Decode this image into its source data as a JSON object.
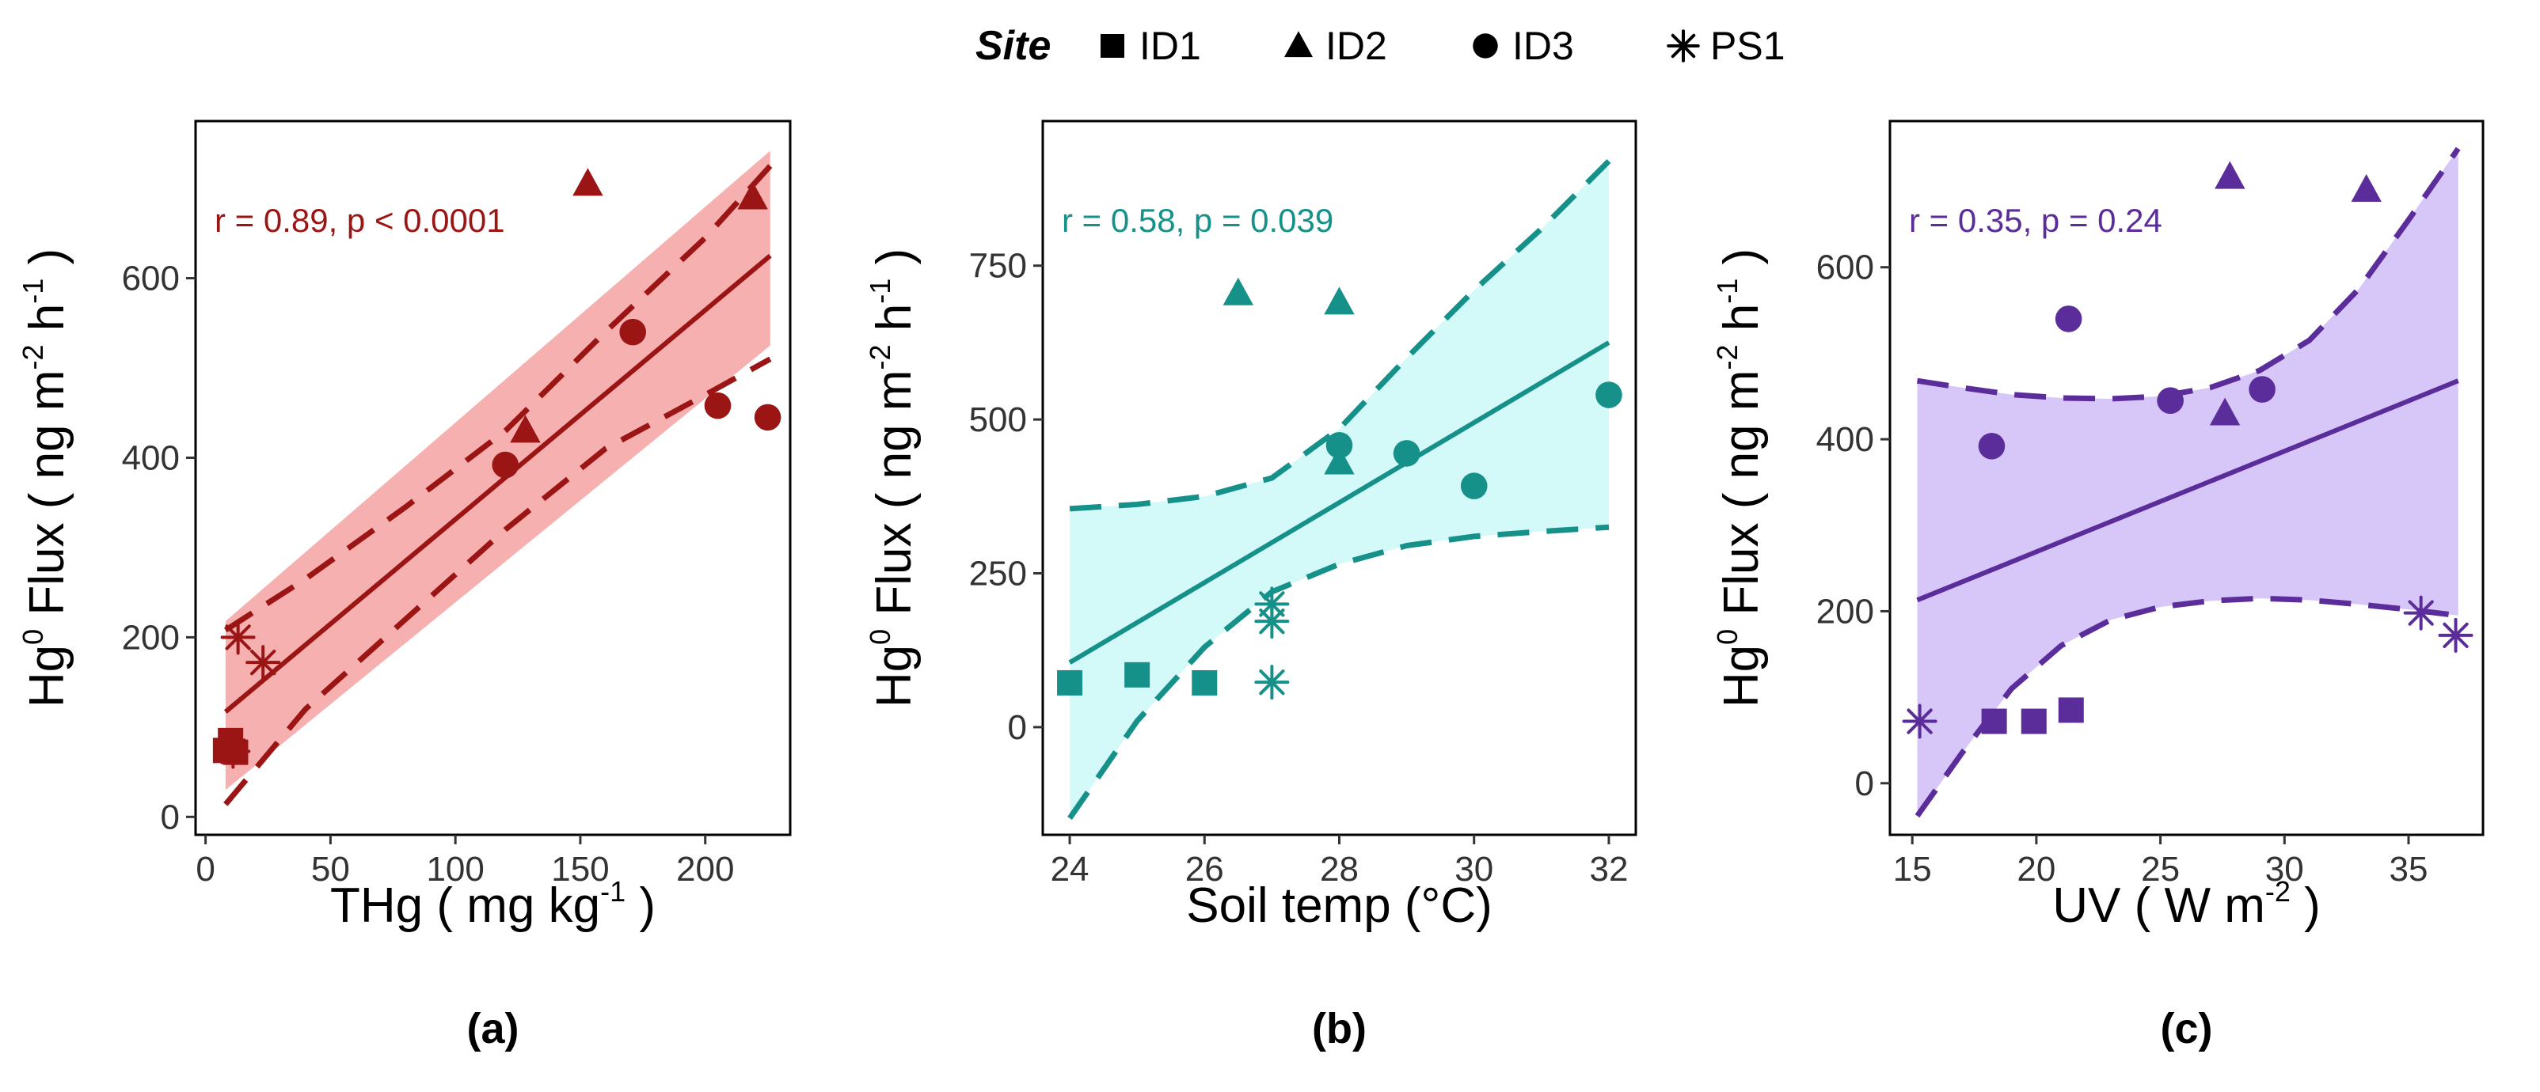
{
  "legend": {
    "title": "Site",
    "entries": [
      {
        "label": "ID1",
        "shape": "square"
      },
      {
        "label": "ID2",
        "shape": "triangle"
      },
      {
        "label": "ID3",
        "shape": "circle"
      },
      {
        "label": "PS1",
        "shape": "asterisk"
      }
    ]
  },
  "chart_data": [
    {
      "type": "scatter",
      "panel_label": "(a)",
      "xlabel": "THg",
      "xunit_base": "mg kg",
      "xunit_exp": "-1",
      "ylabel": "Flux",
      "ylabel_prefix": "Hg",
      "ylabel_sup": "0",
      "yunit_ng": "ng m",
      "yunit_exp1": "-2",
      "yunit_h": "h",
      "yunit_exp2": "-1",
      "annotation": "r = 0.89, p < 0.0001",
      "color": "#9b1515",
      "band_color": "#f08080",
      "band_opacity": 0.62,
      "xlim": [
        -4,
        234
      ],
      "ylim": [
        -20,
        775
      ],
      "xticks": [
        0,
        50,
        100,
        150,
        200
      ],
      "yticks": [
        0,
        200,
        400,
        600
      ],
      "band": {
        "x": [
          8,
          226
        ],
        "lower": [
          30,
          525
        ],
        "upper": [
          218,
          742
        ]
      },
      "dashed_lower": [
        [
          8,
          14
        ],
        [
          40,
          120
        ],
        [
          80,
          220
        ],
        [
          120,
          320
        ],
        [
          160,
          410
        ],
        [
          200,
          470
        ],
        [
          226,
          510
        ]
      ],
      "dashed_upper": [
        [
          8,
          208
        ],
        [
          40,
          265
        ],
        [
          80,
          345
        ],
        [
          120,
          430
        ],
        [
          160,
          540
        ],
        [
          200,
          645
        ],
        [
          226,
          725
        ]
      ],
      "fit": {
        "x": [
          8,
          226
        ],
        "y": [
          117,
          625
        ]
      },
      "points": [
        {
          "site": "ID1",
          "x": 8,
          "y": 74
        },
        {
          "site": "ID1",
          "x": 10,
          "y": 85
        },
        {
          "site": "ID1",
          "x": 12,
          "y": 72
        },
        {
          "site": "ID2",
          "x": 128,
          "y": 430
        },
        {
          "site": "ID2",
          "x": 153,
          "y": 705
        },
        {
          "site": "ID2",
          "x": 219,
          "y": 690
        },
        {
          "site": "ID3",
          "x": 120,
          "y": 392
        },
        {
          "site": "ID3",
          "x": 171,
          "y": 540
        },
        {
          "site": "ID3",
          "x": 205,
          "y": 458
        },
        {
          "site": "ID3",
          "x": 225,
          "y": 445
        },
        {
          "site": "PS1",
          "x": 13,
          "y": 200
        },
        {
          "site": "PS1",
          "x": 23,
          "y": 172
        },
        {
          "site": "PS1",
          "x": 11,
          "y": 73
        }
      ]
    },
    {
      "type": "scatter",
      "panel_label": "(b)",
      "xlabel": "Soil temp (°C)",
      "ylabel": "Flux",
      "ylabel_prefix": "Hg",
      "ylabel_sup": "0",
      "yunit_ng": "ng m",
      "yunit_exp1": "-2",
      "yunit_h": "h",
      "yunit_exp2": "-1",
      "annotation": "r = 0.58, p = 0.039",
      "color": "#16918a",
      "band_color": "#c5f7f7",
      "band_opacity": 0.75,
      "xlim": [
        23.6,
        32.4
      ],
      "ylim": [
        -175,
        985
      ],
      "xticks": [
        24,
        26,
        28,
        30,
        32
      ],
      "yticks": [
        0,
        250,
        500,
        750
      ],
      "band": {
        "x": [
          24,
          32
        ],
        "lower": [
          -155,
          320
        ],
        "upper": [
          355,
          925
        ]
      },
      "dashed_lower": [
        [
          24,
          -148
        ],
        [
          25,
          10
        ],
        [
          26,
          130
        ],
        [
          27,
          220
        ],
        [
          28,
          265
        ],
        [
          29,
          295
        ],
        [
          30,
          310
        ],
        [
          31,
          318
        ],
        [
          32,
          325
        ]
      ],
      "dashed_upper": [
        [
          24,
          355
        ],
        [
          25,
          362
        ],
        [
          26,
          375
        ],
        [
          27,
          405
        ],
        [
          28,
          485
        ],
        [
          29,
          600
        ],
        [
          30,
          710
        ],
        [
          31,
          810
        ],
        [
          32,
          920
        ]
      ],
      "fit": {
        "x": [
          24,
          32
        ],
        "y": [
          105,
          625
        ]
      },
      "points": [
        {
          "site": "ID1",
          "x": 24,
          "y": 72
        },
        {
          "site": "ID1",
          "x": 25,
          "y": 85
        },
        {
          "site": "ID1",
          "x": 26,
          "y": 72
        },
        {
          "site": "ID2",
          "x": 26.5,
          "y": 705
        },
        {
          "site": "ID2",
          "x": 28,
          "y": 690
        },
        {
          "site": "ID2",
          "x": 28,
          "y": 430
        },
        {
          "site": "ID3",
          "x": 28,
          "y": 458
        },
        {
          "site": "ID3",
          "x": 29,
          "y": 445
        },
        {
          "site": "ID3",
          "x": 30,
          "y": 392
        },
        {
          "site": "ID3",
          "x": 32,
          "y": 540
        },
        {
          "site": "PS1",
          "x": 27,
          "y": 200
        },
        {
          "site": "PS1",
          "x": 27,
          "y": 172
        },
        {
          "site": "PS1",
          "x": 27,
          "y": 73
        }
      ]
    },
    {
      "type": "scatter",
      "panel_label": "(c)",
      "xlabel": "UV",
      "xunit_base": "W m",
      "xunit_exp": "-2",
      "ylabel": "Flux",
      "ylabel_prefix": "Hg",
      "ylabel_sup": "0",
      "yunit_ng": "ng m",
      "yunit_exp1": "-2",
      "yunit_h": "h",
      "yunit_exp2": "-1",
      "annotation": "r = 0.35, p = 0.24",
      "color": "#5b2d9a",
      "band_color": "#c6aef5",
      "band_opacity": 0.7,
      "xlim": [
        14.1,
        38.0
      ],
      "ylim": [
        -60,
        770
      ],
      "xticks": [
        15,
        20,
        25,
        30,
        35
      ],
      "yticks": [
        0,
        200,
        400,
        600
      ],
      "band": {
        "x": [
          15.2,
          37.0
        ],
        "lower": [
          -40,
          195
        ],
        "upper": [
          468,
          738
        ]
      },
      "dashed_lower": [
        [
          15.2,
          -38
        ],
        [
          17,
          35
        ],
        [
          19,
          110
        ],
        [
          21,
          160
        ],
        [
          23,
          190
        ],
        [
          25,
          205
        ],
        [
          27,
          212
        ],
        [
          29,
          215
        ],
        [
          31,
          213
        ],
        [
          33,
          208
        ],
        [
          35,
          202
        ],
        [
          37,
          195
        ]
      ],
      "dashed_upper": [
        [
          15.2,
          468
        ],
        [
          17,
          460
        ],
        [
          19,
          452
        ],
        [
          21,
          448
        ],
        [
          23,
          447
        ],
        [
          25,
          450
        ],
        [
          27,
          460
        ],
        [
          29,
          480
        ],
        [
          31,
          515
        ],
        [
          33,
          575
        ],
        [
          35,
          655
        ],
        [
          37,
          738
        ]
      ],
      "fit": {
        "x": [
          15.2,
          37.0
        ],
        "y": [
          213,
          468
        ]
      },
      "points": [
        {
          "site": "ID1",
          "x": 18.3,
          "y": 72
        },
        {
          "site": "ID1",
          "x": 19.9,
          "y": 72
        },
        {
          "site": "ID1",
          "x": 21.4,
          "y": 85
        },
        {
          "site": "ID2",
          "x": 27.8,
          "y": 705
        },
        {
          "site": "ID2",
          "x": 33.3,
          "y": 690
        },
        {
          "site": "ID2",
          "x": 27.6,
          "y": 430
        },
        {
          "site": "ID3",
          "x": 18.2,
          "y": 392
        },
        {
          "site": "ID3",
          "x": 21.3,
          "y": 540
        },
        {
          "site": "ID3",
          "x": 25.4,
          "y": 445
        },
        {
          "site": "ID3",
          "x": 29.1,
          "y": 458
        },
        {
          "site": "PS1",
          "x": 15.3,
          "y": 72
        },
        {
          "site": "PS1",
          "x": 35.5,
          "y": 198
        },
        {
          "site": "PS1",
          "x": 36.9,
          "y": 172
        }
      ]
    }
  ]
}
